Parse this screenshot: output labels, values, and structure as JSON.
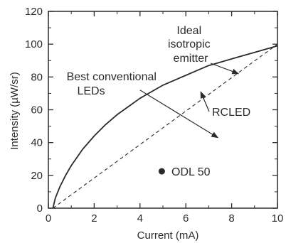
{
  "chart_data": {
    "type": "line",
    "title": "",
    "xlabel": "Current (mA)",
    "ylabel": "Intensity (µW/sr)",
    "xlim": [
      0,
      10
    ],
    "ylim": [
      0,
      120
    ],
    "x_ticks": [
      0,
      2,
      4,
      6,
      8,
      10
    ],
    "y_ticks": [
      0,
      20,
      40,
      60,
      80,
      100,
      120
    ],
    "grid": false,
    "series": [
      {
        "style": "solid",
        "x": [
          0.2,
          0.3,
          0.5,
          0.75,
          1,
          1.5,
          2,
          2.5,
          3,
          3.5,
          4,
          4.5,
          5,
          5.5,
          6,
          6.5,
          7,
          7.5,
          8,
          8.5,
          9,
          9.5,
          10
        ],
        "y": [
          0,
          6,
          13,
          20,
          26,
          36,
          44,
          51,
          57,
          62,
          67,
          71,
          75,
          78,
          81,
          84,
          87,
          89,
          91,
          93,
          95,
          97,
          99
        ]
      },
      {
        "style": "dashed",
        "x": [
          0.2,
          10
        ],
        "y": [
          0,
          100
        ]
      }
    ],
    "points": [
      {
        "label": "ODL 50",
        "x": 4.95,
        "y": 22.5
      }
    ],
    "annotations": [
      {
        "text_lines": [
          "Ideal",
          "isotropic",
          "emitter"
        ],
        "arrow_to": [
          8.3,
          82
        ]
      },
      {
        "text_lines": [
          "Best conventional",
          "LEDs"
        ]
      },
      {
        "text_lines": [
          "RCLED"
        ],
        "arrow_to": [
          6.65,
          71
        ]
      }
    ],
    "divider_arrow": {
      "from": [
        4.0,
        72
      ],
      "to": [
        7.4,
        43
      ]
    }
  },
  "colors": {
    "ink": "#2b2b2b",
    "background": "#ffffff"
  }
}
